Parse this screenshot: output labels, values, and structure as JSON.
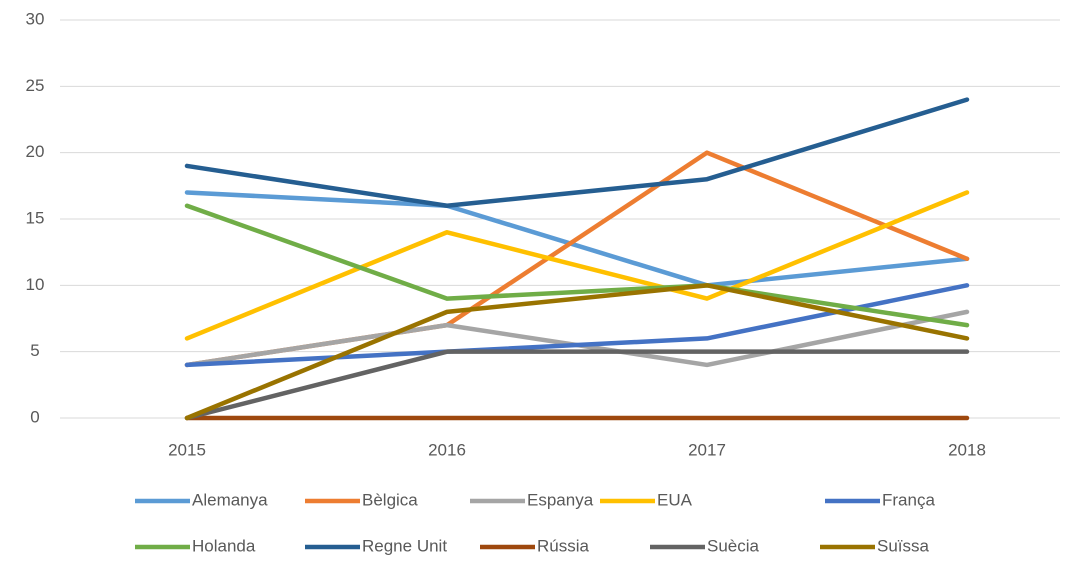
{
  "chart_data": {
    "type": "line",
    "categories": [
      "2015",
      "2016",
      "2017",
      "2018"
    ],
    "series": [
      {
        "name": "Alemanya",
        "color": "#5b9bd5",
        "values": [
          17,
          16,
          10,
          12
        ]
      },
      {
        "name": "Bèlgica",
        "color": "#ed7d31",
        "values": [
          4,
          7,
          20,
          12
        ]
      },
      {
        "name": "Espanya",
        "color": "#a5a5a5",
        "values": [
          4,
          7,
          4,
          8
        ]
      },
      {
        "name": "EUA",
        "color": "#ffc000",
        "values": [
          6,
          14,
          9,
          17
        ]
      },
      {
        "name": "França",
        "color": "#4472c4",
        "values": [
          4,
          5,
          6,
          10
        ]
      },
      {
        "name": "Holanda",
        "color": "#70ad47",
        "values": [
          16,
          9,
          10,
          7
        ]
      },
      {
        "name": "Regne Unit",
        "color": "#255e91",
        "values": [
          19,
          16,
          18,
          24
        ]
      },
      {
        "name": "Rússia",
        "color": "#9e480e",
        "values": [
          0,
          0,
          0,
          0
        ]
      },
      {
        "name": "Suècia",
        "color": "#636363",
        "values": [
          0,
          5,
          5,
          5
        ]
      },
      {
        "name": "Suïssa",
        "color": "#997300",
        "values": [
          0,
          8,
          10,
          6
        ]
      }
    ],
    "ylim": [
      0,
      30
    ],
    "yticks": [
      0,
      5,
      10,
      15,
      20,
      25,
      30
    ],
    "grid": true,
    "legend": "bottom"
  }
}
